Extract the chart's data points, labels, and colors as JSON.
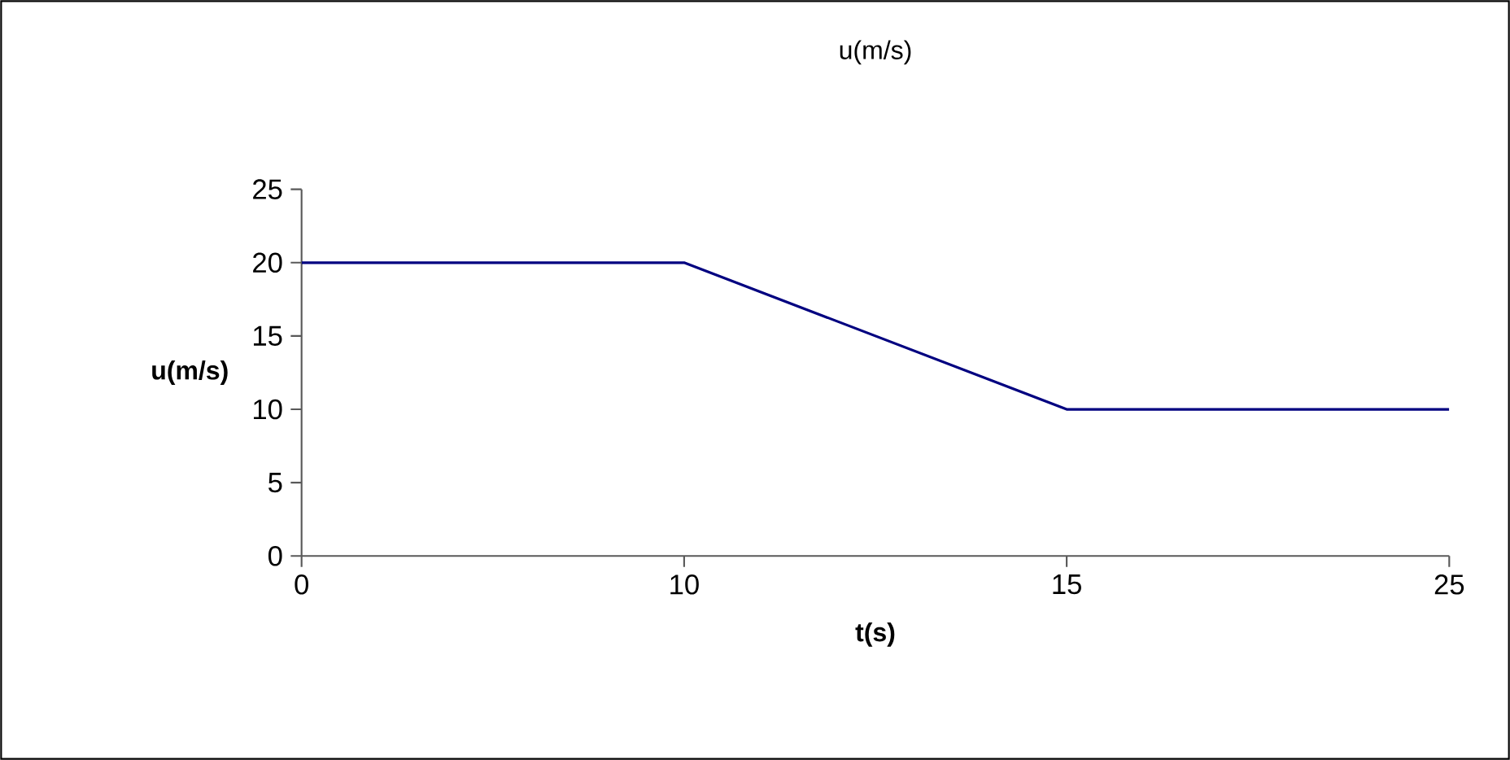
{
  "chart_data": {
    "type": "line",
    "title": "u(m/s)",
    "xlabel": "t(s)",
    "ylabel": "u(m/s)",
    "categories": [
      "0",
      "10",
      "15",
      "25"
    ],
    "series": [
      {
        "color": "#000080",
        "values": [
          20,
          20,
          10,
          10
        ]
      }
    ],
    "ylim": [
      0,
      25
    ],
    "yticks": [
      0,
      5,
      10,
      15,
      20,
      25
    ],
    "marker": "none",
    "line_style": "solid"
  }
}
